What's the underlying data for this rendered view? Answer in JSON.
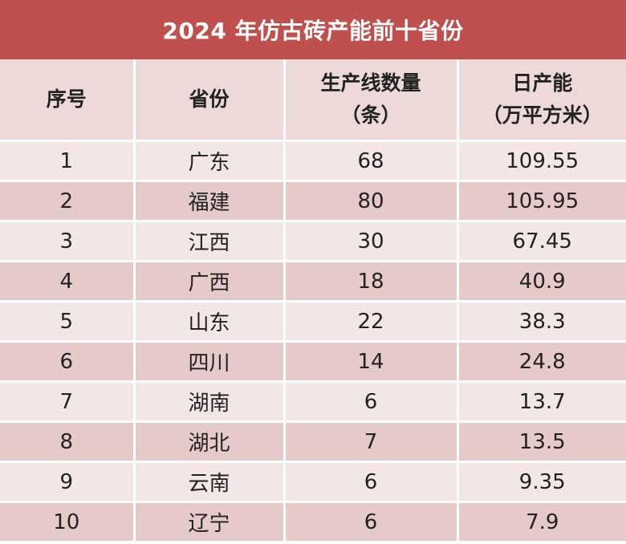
{
  "title": "2024 年仿古砖产能前十省份",
  "columns": {
    "index": "序号",
    "province": "省份",
    "lines_line1": "生产线数量",
    "lines_line2": "（条）",
    "capacity_line1": "日产能",
    "capacity_line2": "（万平方米）"
  },
  "rows": [
    {
      "index": "1",
      "province": "广东",
      "lines": "68",
      "capacity": "109.55"
    },
    {
      "index": "2",
      "province": "福建",
      "lines": "80",
      "capacity": "105.95"
    },
    {
      "index": "3",
      "province": "江西",
      "lines": "30",
      "capacity": "67.45"
    },
    {
      "index": "4",
      "province": "广西",
      "lines": "18",
      "capacity": "40.9"
    },
    {
      "index": "5",
      "province": "山东",
      "lines": "22",
      "capacity": "38.3"
    },
    {
      "index": "6",
      "province": "四川",
      "lines": "14",
      "capacity": "24.8"
    },
    {
      "index": "7",
      "province": "湖南",
      "lines": "6",
      "capacity": "13.7"
    },
    {
      "index": "8",
      "province": "湖北",
      "lines": "7",
      "capacity": "13.5"
    },
    {
      "index": "9",
      "province": "云南",
      "lines": "6",
      "capacity": "9.35"
    },
    {
      "index": "10",
      "province": "辽宁",
      "lines": "6",
      "capacity": "7.9"
    }
  ],
  "colors": {
    "title_bg": "#c0504d",
    "header_bg": "#eed9d9",
    "row_light": "#f3e6e6",
    "row_dark": "#e6caca"
  }
}
